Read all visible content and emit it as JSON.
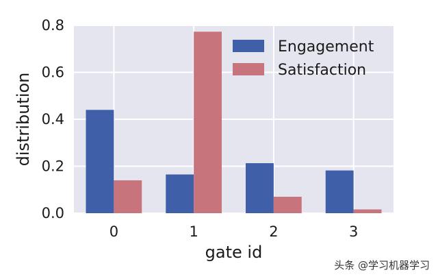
{
  "chart_data": {
    "type": "bar",
    "categories": [
      "0",
      "1",
      "2",
      "3"
    ],
    "series": [
      {
        "name": "Engagement",
        "values": [
          0.44,
          0.165,
          0.213,
          0.182
        ],
        "color": "#3f5fa8"
      },
      {
        "name": "Satisfaction",
        "values": [
          0.14,
          0.773,
          0.07,
          0.016
        ],
        "color": "#c8747c"
      }
    ],
    "xlabel": "gate id",
    "ylabel": "distribution",
    "ylim": [
      0,
      0.8
    ],
    "yticks": [
      "0.0",
      "0.2",
      "0.4",
      "0.6",
      "0.8"
    ],
    "grid": true,
    "legend_position": "top-right",
    "background_color": "#e5e5f0"
  },
  "watermark": "头条 @学习机器学习"
}
